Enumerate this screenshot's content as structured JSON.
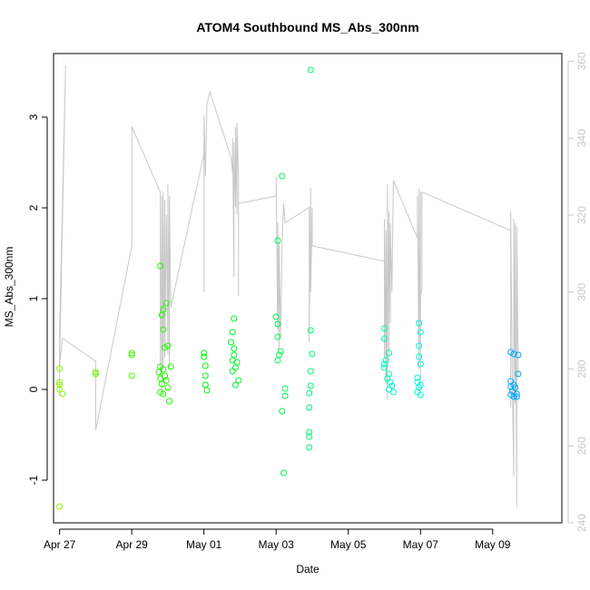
{
  "chart_data": {
    "type": "scatter",
    "title": "ATOM4 Southbound MS_Abs_300nm",
    "xlabel": "Date",
    "ylabel": "MS_Abs_300nm",
    "x_axis": {
      "type": "date",
      "range": [
        "2016-04-26 20:00",
        "2016-05-10 22:00"
      ],
      "ticks": [
        {
          "date": "2016-04-27",
          "label": "Apr 27"
        },
        {
          "date": "2016-04-29",
          "label": "Apr 29"
        },
        {
          "date": "2016-05-01",
          "label": "May 01"
        },
        {
          "date": "2016-05-03",
          "label": "May 03"
        },
        {
          "date": "2016-05-05",
          "label": "May 05"
        },
        {
          "date": "2016-05-07",
          "label": "May 07"
        },
        {
          "date": "2016-05-09",
          "label": "May 09"
        }
      ]
    },
    "y_axis": {
      "range": [
        -1.47,
        3.7
      ],
      "ticks": [
        -1,
        0,
        1,
        2,
        3
      ]
    },
    "y2_axis": {
      "color": "#c8c8c8",
      "range": [
        240,
        362
      ],
      "ticks": [
        240,
        260,
        280,
        300,
        320,
        340,
        360
      ]
    },
    "grid": false,
    "legend": "none",
    "series": [
      {
        "marker": "open-circle",
        "color_note": "colour shifts with date from yellow-green to blue",
        "points": [
          [
            "2016-04-27 00:00",
            0.23
          ],
          [
            "2016-04-27 00:00",
            0.08
          ],
          [
            "2016-04-27 00:00",
            0.05
          ],
          [
            "2016-04-27 00:00",
            0.0
          ],
          [
            "2016-04-27 02:00",
            -0.05
          ],
          [
            "2016-04-27 00:00",
            -1.29
          ],
          [
            "2016-04-28 00:00",
            0.19
          ],
          [
            "2016-04-28 00:00",
            0.17
          ],
          [
            "2016-04-29 00:00",
            0.4
          ],
          [
            "2016-04-29 00:00",
            0.38
          ],
          [
            "2016-04-29 00:00",
            0.15
          ],
          [
            "2016-04-29 19:00",
            1.36
          ],
          [
            "2016-04-29 23:00",
            0.95
          ],
          [
            "2016-04-29 21:00",
            0.88
          ],
          [
            "2016-04-29 20:00",
            0.82
          ],
          [
            "2016-04-29 21:00",
            0.66
          ],
          [
            "2016-04-30 00:00",
            0.48
          ],
          [
            "2016-04-29 22:00",
            0.46
          ],
          [
            "2016-04-29 19:00",
            0.25
          ],
          [
            "2016-04-30 02:00",
            0.25
          ],
          [
            "2016-04-29 18:00",
            0.19
          ],
          [
            "2016-04-29 21:00",
            0.22
          ],
          [
            "2016-04-29 22:00",
            0.15
          ],
          [
            "2016-04-29 19:00",
            0.12
          ],
          [
            "2016-04-29 23:00",
            0.1
          ],
          [
            "2016-04-29 20:00",
            0.06
          ],
          [
            "2016-04-30 00:00",
            0.02
          ],
          [
            "2016-04-29 19:00",
            -0.03
          ],
          [
            "2016-04-29 21:00",
            -0.05
          ],
          [
            "2016-04-30 01:00",
            -0.13
          ],
          [
            "2016-05-01 00:00",
            0.4
          ],
          [
            "2016-05-01 00:00",
            0.36
          ],
          [
            "2016-05-01 01:00",
            0.26
          ],
          [
            "2016-05-01 01:00",
            0.15
          ],
          [
            "2016-05-01 01:00",
            0.05
          ],
          [
            "2016-05-01 02:00",
            -0.01
          ],
          [
            "2016-05-01 20:00",
            0.78
          ],
          [
            "2016-05-01 19:00",
            0.63
          ],
          [
            "2016-05-01 18:00",
            0.52
          ],
          [
            "2016-05-01 20:00",
            0.45
          ],
          [
            "2016-05-01 20:00",
            0.38
          ],
          [
            "2016-05-01 19:00",
            0.32
          ],
          [
            "2016-05-01 22:00",
            0.3
          ],
          [
            "2016-05-01 21:00",
            0.24
          ],
          [
            "2016-05-01 19:00",
            0.2
          ],
          [
            "2016-05-01 23:00",
            0.1
          ],
          [
            "2016-05-01 21:00",
            0.05
          ],
          [
            "2016-05-03 04:00",
            2.35
          ],
          [
            "2016-05-03 01:00",
            1.64
          ],
          [
            "2016-05-03 00:00",
            0.8
          ],
          [
            "2016-05-03 01:00",
            0.72
          ],
          [
            "2016-05-03 01:00",
            0.58
          ],
          [
            "2016-05-03 03:00",
            0.42
          ],
          [
            "2016-05-03 02:00",
            0.38
          ],
          [
            "2016-05-03 01:00",
            0.32
          ],
          [
            "2016-05-03 06:00",
            0.01
          ],
          [
            "2016-05-03 06:00",
            -0.07
          ],
          [
            "2016-05-03 04:00",
            -0.24
          ],
          [
            "2016-05-03 05:00",
            -0.92
          ],
          [
            "2016-05-03 23:00",
            3.52
          ],
          [
            "2016-05-03 23:00",
            0.65
          ],
          [
            "2016-05-04 00:00",
            0.39
          ],
          [
            "2016-05-03 23:00",
            0.2
          ],
          [
            "2016-05-03 23:00",
            0.04
          ],
          [
            "2016-05-03 22:00",
            -0.04
          ],
          [
            "2016-05-03 22:00",
            -0.2
          ],
          [
            "2016-05-03 22:00",
            -0.47
          ],
          [
            "2016-05-03 22:00",
            -0.52
          ],
          [
            "2016-05-03 22:00",
            -0.64
          ],
          [
            "2016-05-06 00:00",
            0.67
          ],
          [
            "2016-05-06 00:00",
            0.56
          ],
          [
            "2016-05-06 03:00",
            0.4
          ],
          [
            "2016-05-06 01:00",
            0.32
          ],
          [
            "2016-05-06 00:00",
            0.28
          ],
          [
            "2016-05-06 00:00",
            0.24
          ],
          [
            "2016-05-06 03:00",
            0.17
          ],
          [
            "2016-05-06 02:00",
            0.12
          ],
          [
            "2016-05-06 04:00",
            0.08
          ],
          [
            "2016-05-06 05:00",
            0.04
          ],
          [
            "2016-05-06 03:00",
            0.0
          ],
          [
            "2016-05-06 06:00",
            -0.03
          ],
          [
            "2016-05-06 23:00",
            0.73
          ],
          [
            "2016-05-07 00:00",
            0.63
          ],
          [
            "2016-05-06 23:00",
            0.48
          ],
          [
            "2016-05-06 23:00",
            0.36
          ],
          [
            "2016-05-07 00:00",
            0.28
          ],
          [
            "2016-05-06 22:00",
            0.13
          ],
          [
            "2016-05-06 22:00",
            0.08
          ],
          [
            "2016-05-07 00:00",
            0.05
          ],
          [
            "2016-05-06 23:00",
            0.02
          ],
          [
            "2016-05-06 22:00",
            -0.03
          ],
          [
            "2016-05-07 00:00",
            -0.06
          ],
          [
            "2016-05-09 12:00",
            0.41
          ],
          [
            "2016-05-09 14:00",
            0.39
          ],
          [
            "2016-05-09 17:00",
            0.38
          ],
          [
            "2016-05-09 17:00",
            0.17
          ],
          [
            "2016-05-09 12:00",
            0.09
          ],
          [
            "2016-05-09 14:00",
            0.05
          ],
          [
            "2016-05-09 12:00",
            0.03
          ],
          [
            "2016-05-09 15:00",
            0.02
          ],
          [
            "2016-05-09 13:00",
            -0.02
          ],
          [
            "2016-05-09 16:00",
            -0.05
          ],
          [
            "2016-05-09 12:00",
            -0.06
          ],
          [
            "2016-05-09 14:00",
            -0.08
          ],
          [
            "2016-05-09 16:00",
            -0.08
          ]
        ]
      },
      {
        "axis": "right",
        "line": true,
        "color": "#c8c8c8",
        "points": [
          [
            "2016-04-27 00:00",
            273
          ],
          [
            "2016-04-27 00:00",
            290
          ],
          [
            "2016-04-27 04:00",
            359
          ],
          [
            "2016-04-27 00:00",
            281
          ],
          [
            "2016-04-27 02:00",
            288
          ],
          [
            "2016-04-28 00:00",
            282
          ],
          [
            "2016-04-28 00:00",
            264
          ],
          [
            "2016-04-29 00:00",
            312
          ],
          [
            "2016-04-29 00:00",
            343
          ],
          [
            "2016-04-29 19:00",
            326
          ],
          [
            "2016-04-29 19:00",
            290
          ],
          [
            "2016-04-29 19:00",
            278
          ],
          [
            "2016-04-29 20:00",
            325
          ],
          [
            "2016-04-29 20:00",
            274
          ],
          [
            "2016-04-29 21:00",
            326
          ],
          [
            "2016-04-29 21:00",
            280
          ],
          [
            "2016-04-29 22:00",
            324
          ],
          [
            "2016-04-29 22:00",
            283
          ],
          [
            "2016-04-29 23:00",
            320
          ],
          [
            "2016-04-30 00:00",
            284
          ],
          [
            "2016-04-30 00:00",
            328
          ],
          [
            "2016-04-30 01:00",
            280
          ],
          [
            "2016-04-30 01:00",
            325
          ],
          [
            "2016-04-30 02:00",
            296
          ],
          [
            "2016-05-01 00:00",
            336
          ],
          [
            "2016-05-01 00:00",
            300
          ],
          [
            "2016-05-01 00:00",
            346
          ],
          [
            "2016-05-01 01:00",
            330
          ],
          [
            "2016-05-01 02:00",
            349
          ],
          [
            "2016-05-01 04:00",
            352
          ],
          [
            "2016-05-01 18:00",
            335
          ],
          [
            "2016-05-01 19:00",
            331
          ],
          [
            "2016-05-01 19:00",
            340
          ],
          [
            "2016-05-01 20:00",
            304
          ],
          [
            "2016-05-01 20:00",
            339
          ],
          [
            "2016-05-01 21:00",
            322
          ],
          [
            "2016-05-01 21:00",
            343
          ],
          [
            "2016-05-01 22:00",
            320
          ],
          [
            "2016-05-01 22:00",
            344
          ],
          [
            "2016-05-01 23:00",
            330
          ],
          [
            "2016-05-01 23:00",
            299
          ],
          [
            "2016-05-01 23:00",
            323
          ],
          [
            "2016-05-03 00:00",
            325
          ],
          [
            "2016-05-03 00:00",
            330
          ],
          [
            "2016-05-03 01:00",
            290
          ],
          [
            "2016-05-03 01:00",
            318
          ],
          [
            "2016-05-03 02:00",
            285
          ],
          [
            "2016-05-03 02:00",
            313
          ],
          [
            "2016-05-03 03:00",
            288
          ],
          [
            "2016-05-03 04:00",
            313
          ],
          [
            "2016-05-03 05:00",
            323
          ],
          [
            "2016-05-03 06:00",
            318
          ],
          [
            "2016-05-03 22:00",
            322
          ],
          [
            "2016-05-03 22:00",
            287
          ],
          [
            "2016-05-03 23:00",
            327
          ],
          [
            "2016-05-03 23:00",
            300
          ],
          [
            "2016-05-04 00:00",
            322
          ],
          [
            "2016-05-04 00:00",
            312
          ],
          [
            "2016-05-06 00:00",
            308
          ],
          [
            "2016-05-06 00:00",
            283
          ],
          [
            "2016-05-06 00:00",
            319
          ],
          [
            "2016-05-06 01:00",
            276
          ],
          [
            "2016-05-06 01:00",
            316
          ],
          [
            "2016-05-06 02:00",
            272
          ],
          [
            "2016-05-06 02:00",
            328
          ],
          [
            "2016-05-06 03:00",
            283
          ],
          [
            "2016-05-06 03:00",
            321
          ],
          [
            "2016-05-06 04:00",
            292
          ],
          [
            "2016-05-06 04:00",
            318
          ],
          [
            "2016-05-06 05:00",
            300
          ],
          [
            "2016-05-06 06:00",
            329
          ],
          [
            "2016-05-06 22:00",
            314
          ],
          [
            "2016-05-06 22:00",
            325
          ],
          [
            "2016-05-06 23:00",
            280
          ],
          [
            "2016-05-06 23:00",
            327
          ],
          [
            "2016-05-07 00:00",
            277
          ],
          [
            "2016-05-07 00:00",
            326
          ],
          [
            "2016-05-07 00:00",
            299
          ],
          [
            "2016-05-07 01:00",
            301
          ],
          [
            "2016-05-07 01:00",
            326
          ],
          [
            "2016-05-09 12:00",
            316
          ],
          [
            "2016-05-09 12:00",
            270
          ],
          [
            "2016-05-09 12:00",
            321
          ],
          [
            "2016-05-09 13:00",
            279
          ],
          [
            "2016-05-09 14:00",
            252
          ],
          [
            "2016-05-09 14:00",
            319
          ],
          [
            "2016-05-09 15:00",
            271
          ],
          [
            "2016-05-09 15:00",
            318
          ],
          [
            "2016-05-09 16:00",
            244
          ],
          [
            "2016-05-09 16:00",
            317
          ],
          [
            "2016-05-09 17:00",
            278
          ]
        ]
      }
    ]
  }
}
